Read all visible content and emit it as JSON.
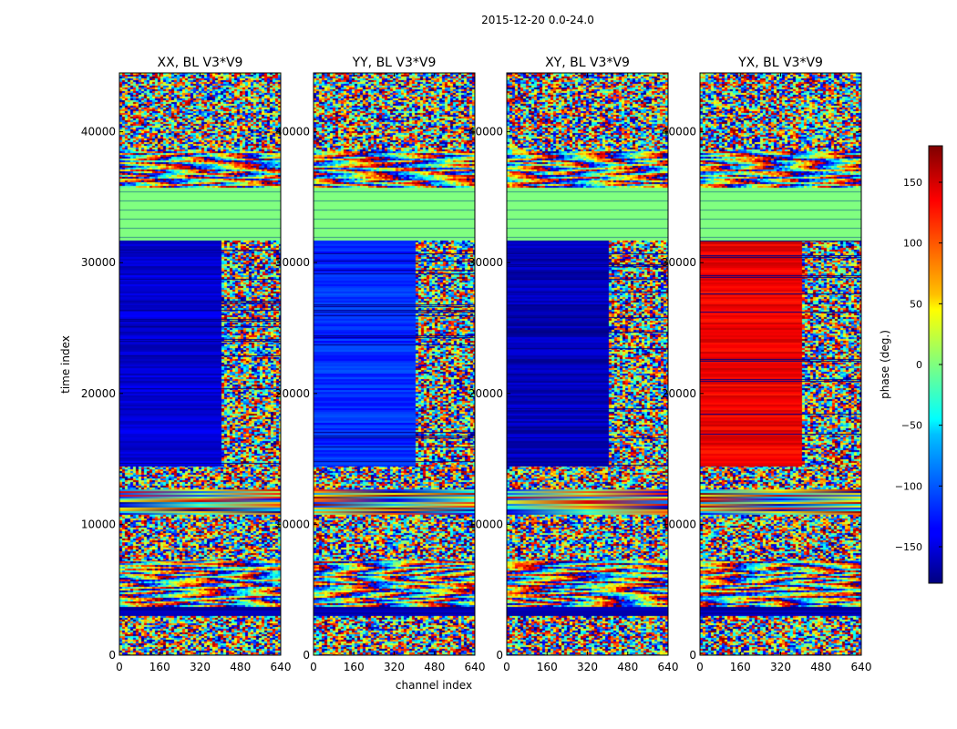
{
  "figure": {
    "suptitle": "2015-12-20 0.0-24.0"
  },
  "chart_data": {
    "type": "heatmap",
    "panels": [
      {
        "title": "XX, BL V3*V9",
        "dominant_phase_rows": -150
      },
      {
        "title": "YY, BL V3*V9",
        "dominant_phase_rows": -120
      },
      {
        "title": "XY, BL V3*V9",
        "dominant_phase_rows": -160
      },
      {
        "title": "YX, BL V3*V9",
        "dominant_phase_rows": 140
      }
    ],
    "xlabel": "channel index",
    "ylabel": "time index",
    "xlim": [
      0,
      640
    ],
    "ylim": [
      0,
      44500
    ],
    "x_ticks": [
      0,
      160,
      320,
      480,
      640
    ],
    "y_ticks": [
      0,
      10000,
      20000,
      30000,
      40000
    ],
    "colorbar": {
      "label": "phase (deg.)",
      "range": [
        -180,
        180
      ],
      "ticks": [
        150,
        100,
        50,
        0,
        -50,
        -100,
        -150
      ],
      "tick_labels": [
        "150",
        "100",
        "50",
        "0",
        "−50",
        "−100",
        "−150"
      ],
      "colormap": "jet"
    },
    "bands": [
      {
        "y0": 0,
        "y1": 3000,
        "kind": "noise"
      },
      {
        "y0": 3000,
        "y1": 3700,
        "kind": "dark"
      },
      {
        "y0": 3700,
        "y1": 7300,
        "kind": "fringe"
      },
      {
        "y0": 7300,
        "y1": 10700,
        "kind": "noise"
      },
      {
        "y0": 10700,
        "y1": 12700,
        "kind": "smooth"
      },
      {
        "y0": 12700,
        "y1": 14500,
        "kind": "noise"
      },
      {
        "y0": 14500,
        "y1": 31700,
        "kind": "solid"
      },
      {
        "y0": 31700,
        "y1": 35700,
        "kind": "zero"
      },
      {
        "y0": 35700,
        "y1": 38500,
        "kind": "fringe"
      },
      {
        "y0": 38500,
        "y1": 44500,
        "kind": "noise"
      }
    ]
  }
}
